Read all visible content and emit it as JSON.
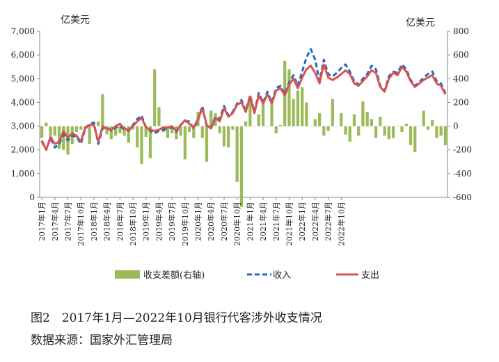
{
  "chart_data": {
    "type": "bar+line",
    "title": "2017年1月—2022年10月银行代客涉外收支情况",
    "left_axis_label": "亿美元",
    "right_axis_label": "亿美元",
    "left_ylim": [
      0,
      7000
    ],
    "right_ylim": [
      -600,
      800
    ],
    "left_ticks": [
      "0",
      "1,000",
      "2,000",
      "3,000",
      "4,000",
      "5,000",
      "6,000",
      "7,000"
    ],
    "right_ticks": [
      "-600",
      "-400",
      "-200",
      "0",
      "200",
      "400",
      "600",
      "800"
    ],
    "x_tick_labels": [
      "2017年1月",
      "2017年4月",
      "2017年7月",
      "2017年10月",
      "2018年1月",
      "2018年4月",
      "2018年7月",
      "2018年10月",
      "2019年1月",
      "2019年4月",
      "2019年7月",
      "2019年10月",
      "2020年1月",
      "2020年4月",
      "2020年7月",
      "2020年10月",
      "2021年1月",
      "2021年4月",
      "2021年7月",
      "2021年10月",
      "2022年1月",
      "2022年4月",
      "2022年7月",
      "2022年10月"
    ],
    "x_tick_every": 3,
    "legend": [
      "收支差额(右轴)",
      "收入",
      "支出"
    ],
    "series": [
      {
        "name": "收支差额(右轴)",
        "axis": "right",
        "type": "bar",
        "color": "#9bbb59",
        "values": [
          -100,
          30,
          -80,
          -80,
          -190,
          -200,
          -240,
          -150,
          -50,
          -30,
          -20,
          -150,
          0,
          40,
          270,
          -70,
          -110,
          -80,
          -60,
          -80,
          -140,
          -30,
          -180,
          -320,
          -90,
          -270,
          480,
          160,
          -50,
          -100,
          -60,
          -110,
          -80,
          -280,
          -50,
          -100,
          120,
          -100,
          -300,
          130,
          110,
          -60,
          -170,
          -180,
          -30,
          -470,
          -680,
          40,
          220,
          0,
          100,
          200,
          0,
          220,
          -60,
          10,
          550,
          480,
          230,
          300,
          330,
          200,
          0,
          60,
          110,
          -80,
          -40,
          230,
          0,
          110,
          -70,
          -130,
          100,
          -80,
          210,
          120,
          60,
          -100,
          80,
          -80,
          -110,
          -100,
          0,
          -50,
          20,
          -160,
          -220,
          0,
          130,
          -30,
          50,
          -100,
          -80,
          -160
        ]
      },
      {
        "name": "收入",
        "axis": "left",
        "type": "line",
        "color": "#1f6bbf",
        "dash": true,
        "values": [
          2350,
          2000,
          2500,
          2100,
          2250,
          2650,
          2400,
          2600,
          2550,
          2250,
          2900,
          3100,
          3150,
          2250,
          2900,
          2950,
          2800,
          2950,
          3000,
          2850,
          2800,
          3050,
          3300,
          3450,
          2950,
          2800,
          2700,
          2800,
          2850,
          2900,
          2950,
          2750,
          3050,
          3200,
          3200,
          2900,
          3250,
          3850,
          3000,
          2950,
          3400,
          3300,
          3850,
          3450,
          3600,
          3950,
          4100,
          3650,
          4300,
          3600,
          4400,
          4000,
          4450,
          4000,
          4600,
          4700,
          4350,
          4850,
          5150,
          4700,
          5300,
          5900,
          6250,
          5800,
          4900,
          5800,
          5200,
          5100,
          5250,
          5450,
          5600,
          5300,
          4900,
          4750,
          5000,
          5200,
          5550,
          5400,
          4700,
          4500,
          5100,
          5300,
          5250,
          5600,
          5400,
          4950,
          4700,
          4850,
          5050,
          5200,
          5300,
          4900,
          4800,
          4400
        ]
      },
      {
        "name": "支出",
        "axis": "left",
        "type": "line",
        "color": "#d9534f",
        "dash": false,
        "values": [
          2400,
          2000,
          2550,
          2250,
          2350,
          2800,
          2500,
          2700,
          2600,
          2350,
          2950,
          3050,
          3050,
          2350,
          3000,
          2900,
          2850,
          3000,
          3100,
          2900,
          2850,
          3000,
          3200,
          3350,
          2950,
          2850,
          2800,
          2850,
          2950,
          2950,
          3000,
          2800,
          3050,
          3250,
          3100,
          2950,
          3300,
          3750,
          3050,
          2900,
          3350,
          3200,
          3750,
          3400,
          3550,
          3900,
          4000,
          3600,
          4250,
          3550,
          4300,
          3950,
          4350,
          3950,
          4500,
          4600,
          4300,
          4750,
          5000,
          4600,
          5050,
          5400,
          5550,
          5250,
          4800,
          5600,
          5050,
          4950,
          5050,
          5200,
          5350,
          5200,
          4800,
          4700,
          4900,
          5100,
          5350,
          5250,
          4650,
          4450,
          5000,
          5250,
          5150,
          5500,
          5300,
          4900,
          4650,
          4800,
          4950,
          5050,
          5150,
          4800,
          4700,
          4350
        ]
      }
    ]
  },
  "captions": {
    "figure_title": "图2　2017年1月—2022年10月银行代客涉外收支情况",
    "source": "数据来源：国家外汇管理局"
  }
}
